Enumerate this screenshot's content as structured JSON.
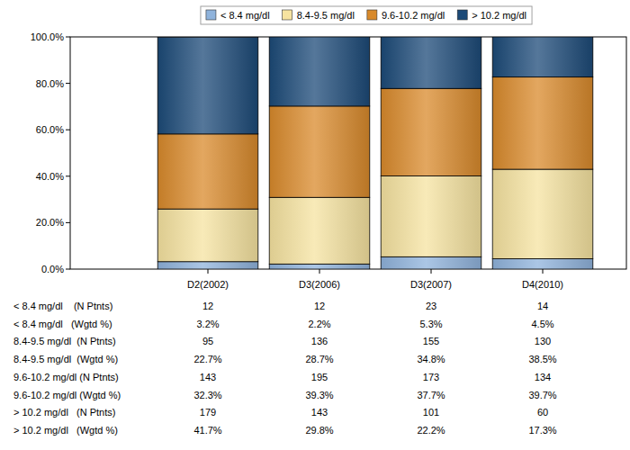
{
  "chart_data": {
    "type": "bar",
    "stacked": true,
    "grid": false,
    "legend": "top",
    "categories": [
      "D2(2002)",
      "D3(2006)",
      "D3(2007)",
      "D4(2010)"
    ],
    "ylim": [
      0,
      100
    ],
    "yticks": [
      {
        "value": 0,
        "label": "0.0%"
      },
      {
        "value": 20,
        "label": "20.0%"
      },
      {
        "value": 40,
        "label": "40.0%"
      },
      {
        "value": 60,
        "label": "60.0%"
      },
      {
        "value": 80,
        "label": "80.0%"
      },
      {
        "value": 100,
        "label": "100.0%"
      }
    ],
    "series": [
      {
        "name": "< 8.4 mg/dl",
        "color": "#8fb3dc",
        "n_label": "< 8.4 mg/dl    (N Ptnts)",
        "n_ptnts": [
          12,
          12,
          23,
          14
        ],
        "pct_label": "< 8.4 mg/dl   (Wgtd %)",
        "values": [
          3.2,
          2.2,
          5.3,
          4.5
        ],
        "value_labels": [
          "3.2%",
          "2.2%",
          "5.3%",
          "4.5%"
        ]
      },
      {
        "name": "8.4-9.5 mg/dl",
        "color": "#f6e3a0",
        "n_label": "8.4-9.5 mg/dl  (N Ptnts)",
        "n_ptnts": [
          95,
          136,
          155,
          130
        ],
        "pct_label": "8.4-9.5 mg/dl  (Wgtd %)",
        "values": [
          22.7,
          28.7,
          34.8,
          38.5
        ],
        "value_labels": [
          "22.7%",
          "28.7%",
          "34.8%",
          "38.5%"
        ]
      },
      {
        "name": "9.6-10.2 mg/dl",
        "color": "#d98a2b",
        "n_label": "9.6-10.2 mg/dl (N Ptnts)",
        "n_ptnts": [
          143,
          195,
          173,
          134
        ],
        "pct_label": "9.6-10.2 mg/dl (Wgtd %)",
        "values": [
          32.3,
          39.3,
          37.7,
          39.7
        ],
        "value_labels": [
          "32.3%",
          "39.3%",
          "37.7%",
          "39.7%"
        ]
      },
      {
        "name": "> 10.2 mg/dl",
        "color": "#1c4a78",
        "n_label": "> 10.2 mg/dl   (N Ptnts)",
        "n_ptnts": [
          179,
          143,
          101,
          60
        ],
        "pct_label": "> 10.2 mg/dl   (Wgtd %)",
        "values": [
          41.7,
          29.8,
          22.2,
          17.3
        ],
        "value_labels": [
          "41.7%",
          "29.8%",
          "22.2%",
          "17.3%"
        ]
      }
    ]
  }
}
